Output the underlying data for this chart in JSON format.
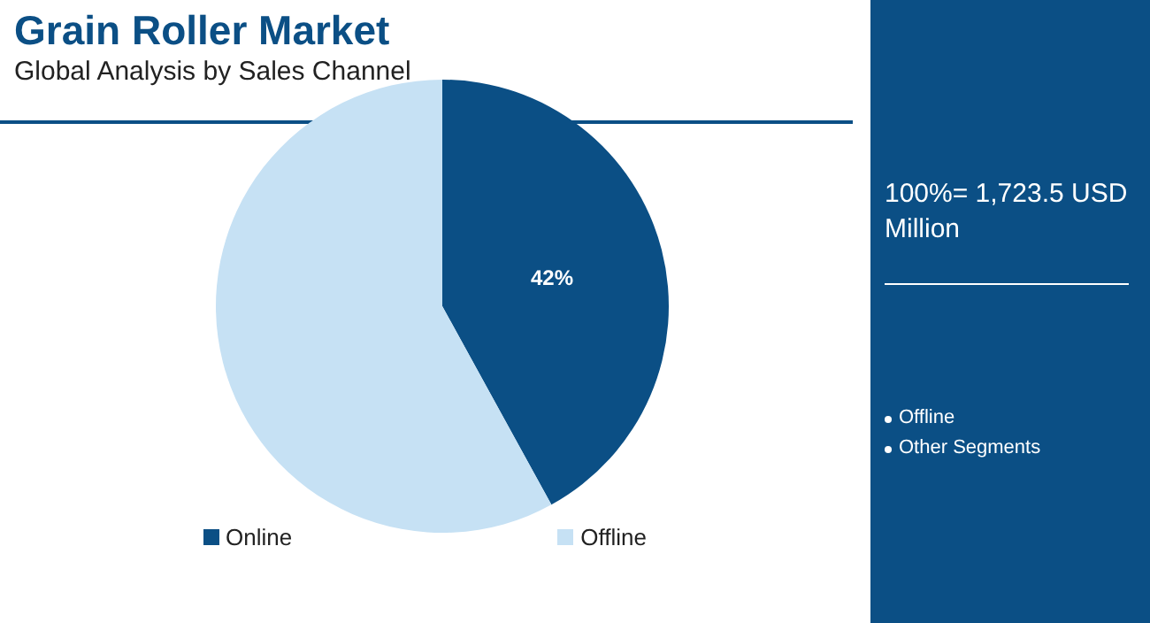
{
  "chart_data": {
    "type": "pie",
    "title": "Grain Roller Market",
    "subtitle": "Global Analysis by Sales Channel",
    "categories": [
      "Online",
      "Offline"
    ],
    "values": [
      42,
      58
    ],
    "colors": [
      "#0b4f85",
      "#c6e1f4"
    ],
    "value_labels": [
      "42%",
      null
    ],
    "legend": "bottom",
    "annotations": [
      "100%= 1,723.5 USD Million",
      "Offline",
      "Other Segments"
    ]
  }
}
